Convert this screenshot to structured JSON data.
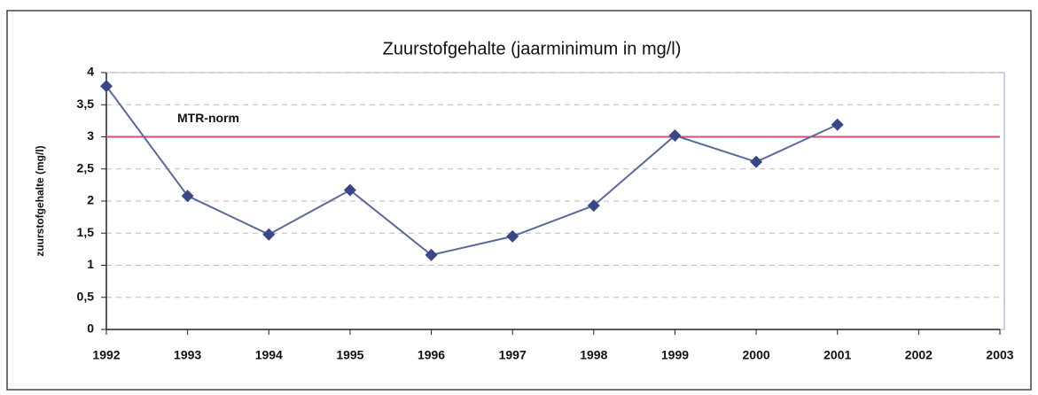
{
  "chart_data": {
    "type": "line",
    "title": "Zuurstofgehalte (jaarminimum in mg/l)",
    "y_label": "zuurstofgehalte (mg/l)",
    "x": [
      1992,
      1993,
      1994,
      1995,
      1996,
      1997,
      1998,
      1999,
      2000,
      2001
    ],
    "values": [
      3.79,
      2.08,
      1.48,
      2.17,
      1.16,
      1.45,
      1.93,
      3.02,
      2.61,
      3.19
    ],
    "color": "#3a4784",
    "xlim": [
      1992,
      2003
    ],
    "xticks": [
      1992,
      1993,
      1994,
      1995,
      1996,
      1997,
      1998,
      1999,
      2000,
      2001,
      2002,
      2003
    ],
    "ylim": [
      0,
      4
    ],
    "yticks": [
      0,
      {
        "value": 0.5,
        "label": "0,5"
      },
      1,
      {
        "value": 1.5,
        "label": "1,5"
      },
      2,
      {
        "value": 2.5,
        "label": "2,5"
      },
      3,
      {
        "value": 3.5,
        "label": "3,5"
      },
      4
    ],
    "grid": true,
    "reference_line": {
      "label": "MTR-norm",
      "value": 3,
      "color": "#d4507c"
    }
  }
}
